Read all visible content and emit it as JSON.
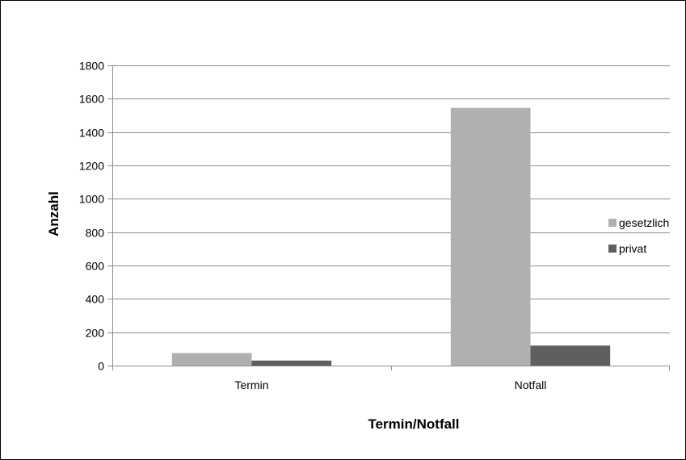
{
  "chart_data": {
    "type": "bar",
    "title": "",
    "xlabel": "Termin/Notfall",
    "ylabel": "Anzahl",
    "ylim": [
      0,
      1800
    ],
    "yticks": [
      0,
      200,
      400,
      600,
      800,
      1000,
      1200,
      1400,
      1600,
      1800
    ],
    "categories": [
      "Termin",
      "Notfall"
    ],
    "series": [
      {
        "name": "gesetzlich",
        "values": [
          75,
          1545
        ],
        "color": "#b0b0b0"
      },
      {
        "name": "privat",
        "values": [
          30,
          120
        ],
        "color": "#5f5f5f"
      }
    ],
    "grid": true,
    "legend_position": "right"
  }
}
